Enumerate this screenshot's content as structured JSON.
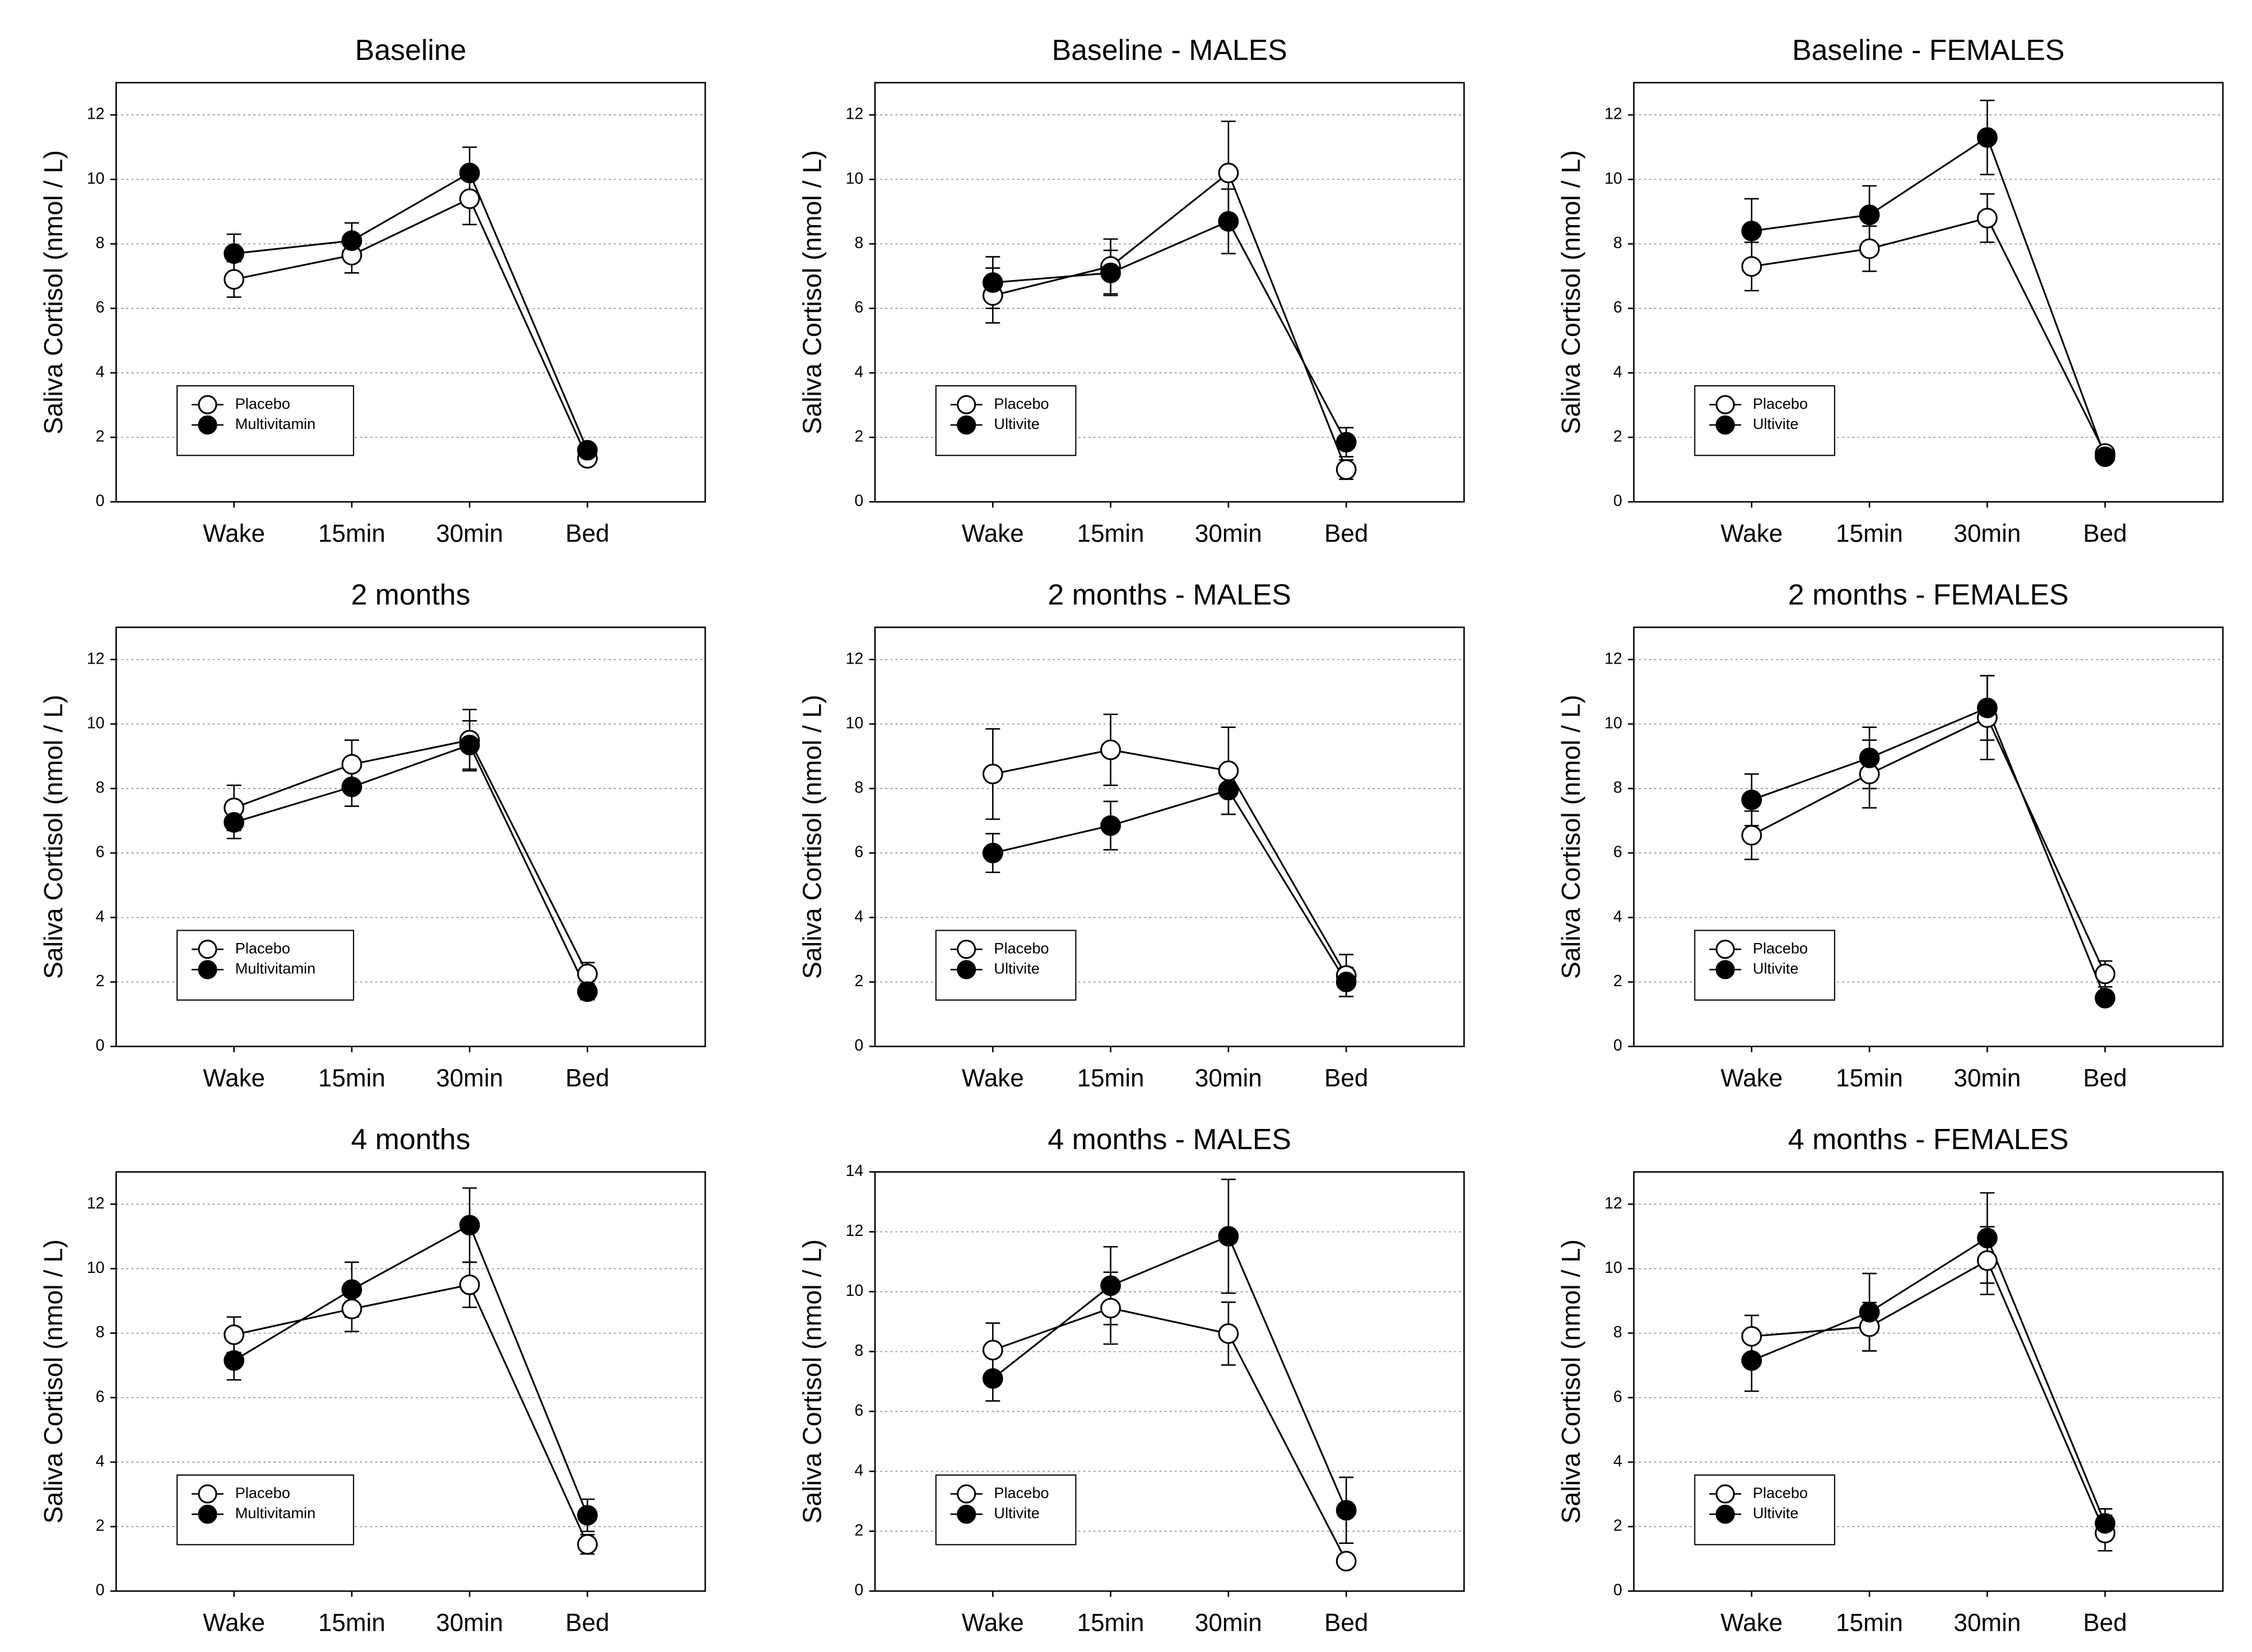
{
  "chart_data": [
    {
      "type": "line",
      "title": "Baseline",
      "ylabel": "Saliva Cortisol (nmol / L)",
      "categories": [
        "Wake",
        "15min",
        "30min",
        "Bed"
      ],
      "series": [
        {
          "name": "Placebo",
          "color": "#ffffff",
          "values": [
            6.9,
            7.65,
            9.4,
            1.35
          ],
          "errors": [
            0.55,
            0.55,
            0.8,
            0.2
          ]
        },
        {
          "name": "Multivitamin",
          "color": "#000000",
          "values": [
            7.7,
            8.1,
            10.2,
            1.6
          ],
          "errors": [
            0.6,
            0.55,
            0.8,
            0.15
          ]
        }
      ],
      "ylim": [
        0,
        13
      ],
      "yticks": [
        0,
        2,
        4,
        6,
        8,
        10,
        12
      ],
      "grid": true,
      "legend": "lower left"
    },
    {
      "type": "line",
      "title": "Baseline - MALES",
      "ylabel": "Saliva Cortisol (nmol / L)",
      "categories": [
        "Wake",
        "15min",
        "30min",
        "Bed"
      ],
      "series": [
        {
          "name": "Placebo",
          "color": "#ffffff",
          "values": [
            6.4,
            7.3,
            10.2,
            1.0
          ],
          "errors": [
            0.85,
            0.85,
            1.6,
            0.3
          ]
        },
        {
          "name": "Ultivite",
          "color": "#000000",
          "values": [
            6.8,
            7.1,
            8.7,
            1.85
          ],
          "errors": [
            0.8,
            0.7,
            1.0,
            0.45
          ]
        }
      ],
      "ylim": [
        0,
        13
      ],
      "yticks": [
        0,
        2,
        4,
        6,
        8,
        10,
        12
      ],
      "grid": true,
      "legend": "lower left"
    },
    {
      "type": "line",
      "title": "Baseline - FEMALES",
      "ylabel": "Saliva Cortisol (nmol / L)",
      "categories": [
        "Wake",
        "15min",
        "30min",
        "Bed"
      ],
      "series": [
        {
          "name": "Placebo",
          "color": "#ffffff",
          "values": [
            7.3,
            7.85,
            8.8,
            1.5
          ],
          "errors": [
            0.75,
            0.7,
            0.75,
            0.15
          ]
        },
        {
          "name": "Ultivite",
          "color": "#000000",
          "values": [
            8.4,
            8.9,
            11.3,
            1.4
          ],
          "errors": [
            1.0,
            0.9,
            1.15,
            0.15
          ]
        }
      ],
      "ylim": [
        0,
        13
      ],
      "yticks": [
        0,
        2,
        4,
        6,
        8,
        10,
        12
      ],
      "grid": true,
      "legend": "lower left"
    },
    {
      "type": "line",
      "title": "2 months",
      "ylabel": "Saliva Cortisol (nmol / L)",
      "categories": [
        "Wake",
        "15min",
        "30min",
        "Bed"
      ],
      "series": [
        {
          "name": "Placebo",
          "color": "#ffffff",
          "values": [
            7.4,
            8.75,
            9.5,
            2.25
          ],
          "errors": [
            0.7,
            0.75,
            0.95,
            0.35
          ]
        },
        {
          "name": "Multivitamin",
          "color": "#000000",
          "values": [
            6.95,
            8.05,
            9.35,
            1.7
          ],
          "errors": [
            0.5,
            0.6,
            0.75,
            0.25
          ]
        }
      ],
      "ylim": [
        0,
        13
      ],
      "yticks": [
        0,
        2,
        4,
        6,
        8,
        10,
        12
      ],
      "grid": true,
      "legend": "lower left"
    },
    {
      "type": "line",
      "title": "2 months - MALES",
      "ylabel": "Saliva Cortisol (nmol / L)",
      "categories": [
        "Wake",
        "15min",
        "30min",
        "Bed"
      ],
      "series": [
        {
          "name": "Placebo",
          "color": "#ffffff",
          "values": [
            8.45,
            9.2,
            8.55,
            2.2
          ],
          "errors": [
            1.4,
            1.1,
            1.35,
            0.65
          ]
        },
        {
          "name": "Ultivite",
          "color": "#000000",
          "values": [
            6.0,
            6.85,
            7.95,
            2.0
          ],
          "errors": [
            0.6,
            0.75,
            0.75,
            0.45
          ]
        }
      ],
      "ylim": [
        0,
        13
      ],
      "yticks": [
        0,
        2,
        4,
        6,
        8,
        10,
        12
      ],
      "grid": true,
      "legend": "lower left"
    },
    {
      "type": "line",
      "title": "2 months - FEMALES",
      "ylabel": "Saliva Cortisol (nmol / L)",
      "categories": [
        "Wake",
        "15min",
        "30min",
        "Bed"
      ],
      "series": [
        {
          "name": "Placebo",
          "color": "#ffffff",
          "values": [
            6.55,
            8.45,
            10.2,
            2.25
          ],
          "errors": [
            0.75,
            1.05,
            1.3,
            0.4
          ]
        },
        {
          "name": "Ultivite",
          "color": "#000000",
          "values": [
            7.65,
            8.95,
            10.5,
            1.5
          ],
          "errors": [
            0.8,
            0.95,
            1.0,
            0.15
          ]
        }
      ],
      "ylim": [
        0,
        13
      ],
      "yticks": [
        0,
        2,
        4,
        6,
        8,
        10,
        12
      ],
      "grid": true,
      "legend": "lower left"
    },
    {
      "type": "line",
      "title": "4 months",
      "ylabel": "Saliva Cortisol (nmol / L)",
      "categories": [
        "Wake",
        "15min",
        "30min",
        "Bed"
      ],
      "series": [
        {
          "name": "Placebo",
          "color": "#ffffff",
          "values": [
            7.95,
            8.75,
            9.5,
            1.45
          ],
          "errors": [
            0.55,
            0.7,
            0.7,
            0.3
          ]
        },
        {
          "name": "Multivitamin",
          "color": "#000000",
          "values": [
            7.15,
            9.35,
            11.35,
            2.35
          ],
          "errors": [
            0.6,
            0.85,
            1.15,
            0.5
          ]
        }
      ],
      "ylim": [
        0,
        13
      ],
      "yticks": [
        0,
        2,
        4,
        6,
        8,
        10,
        12
      ],
      "grid": true,
      "legend": "lower left"
    },
    {
      "type": "line",
      "title": "4 months - MALES",
      "ylabel": "Saliva Cortisol (nmol / L)",
      "categories": [
        "Wake",
        "15min",
        "30min",
        "Bed"
      ],
      "series": [
        {
          "name": "Placebo",
          "color": "#ffffff",
          "values": [
            8.05,
            9.45,
            8.6,
            1.0
          ],
          "errors": [
            0.9,
            1.2,
            1.05,
            0.15
          ]
        },
        {
          "name": "Ultivite",
          "color": "#000000",
          "values": [
            7.1,
            10.2,
            11.85,
            2.7
          ],
          "errors": [
            0.75,
            1.3,
            1.9,
            1.1
          ]
        }
      ],
      "ylim": [
        0,
        14
      ],
      "yticks": [
        0,
        2,
        4,
        6,
        8,
        10,
        12,
        14
      ],
      "grid": true,
      "legend": "lower left"
    },
    {
      "type": "line",
      "title": "4 months - FEMALES",
      "ylabel": "Saliva Cortisol (nmol / L)",
      "categories": [
        "Wake",
        "15min",
        "30min",
        "Bed"
      ],
      "series": [
        {
          "name": "Placebo",
          "color": "#ffffff",
          "values": [
            7.9,
            8.2,
            10.25,
            1.8
          ],
          "errors": [
            0.65,
            0.75,
            1.05,
            0.55
          ]
        },
        {
          "name": "Ultivite",
          "color": "#000000",
          "values": [
            7.15,
            8.65,
            10.95,
            2.1
          ],
          "errors": [
            0.95,
            1.2,
            1.4,
            0.45
          ]
        }
      ],
      "ylim": [
        0,
        13
      ],
      "yticks": [
        0,
        2,
        4,
        6,
        8,
        10,
        12
      ],
      "grid": true,
      "legend": "lower left"
    }
  ]
}
